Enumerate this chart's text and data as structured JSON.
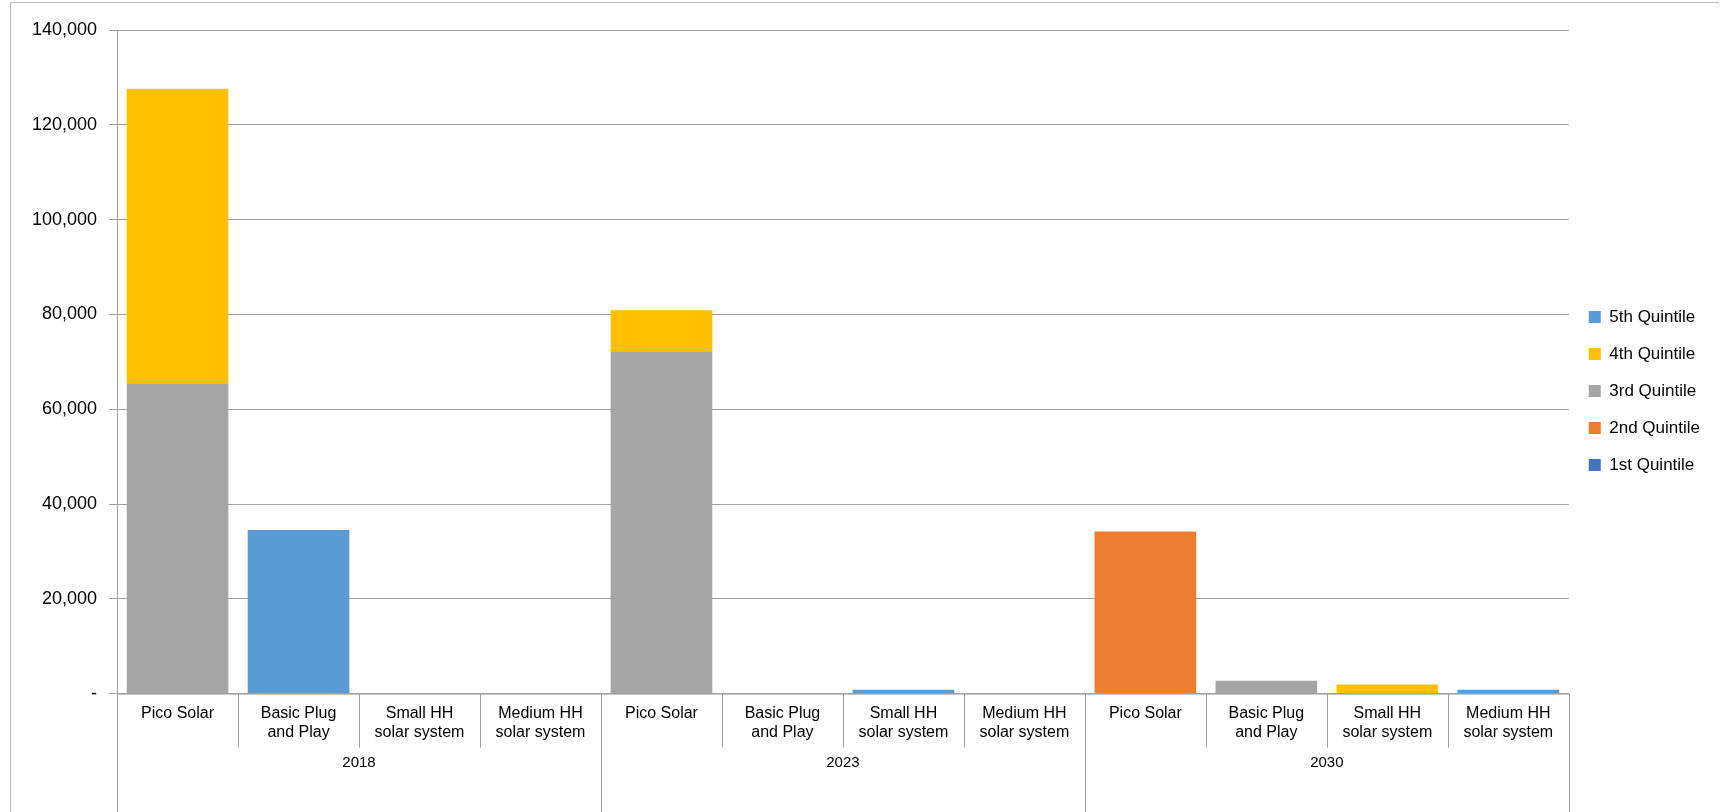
{
  "chart_data": {
    "type": "bar",
    "stacked": true,
    "categories": [
      "Pico Solar",
      "Basic Plug and Play",
      "Small HH solar system",
      "Medium HH solar system",
      "Pico Solar",
      "Basic Plug and Play",
      "Small HH solar system",
      "Medium HH solar system",
      "Pico Solar",
      "Basic Plug and Play",
      "Small HH solar system",
      "Medium HH solar system"
    ],
    "series": [
      {
        "name": "1st Quintile",
        "color": "#4472c4",
        "values": [
          null,
          null,
          null,
          null,
          null,
          null,
          null,
          null,
          null,
          null,
          null,
          null
        ]
      },
      {
        "name": "2nd Quintile",
        "color": "#ed7d31",
        "values": [
          null,
          null,
          null,
          null,
          null,
          null,
          null,
          null,
          34200,
          null,
          null,
          null
        ]
      },
      {
        "name": "3rd Quintile",
        "color": "#a5a5a5",
        "values": [
          65500,
          null,
          null,
          null,
          72200,
          null,
          null,
          null,
          null,
          2700,
          null,
          null
        ]
      },
      {
        "name": "4th Quintile",
        "color": "#ffc000",
        "values": [
          62100,
          null,
          null,
          null,
          8700,
          null,
          null,
          null,
          null,
          null,
          1900,
          null
        ]
      },
      {
        "name": "5th Quintile",
        "color": "#5b9bd5",
        "values": [
          null,
          34500,
          null,
          null,
          null,
          null,
          800,
          null,
          null,
          null,
          null,
          800
        ]
      }
    ],
    "ylim": [
      0,
      140000
    ],
    "yticks": [
      {
        "value": 0,
        "label": "-"
      },
      {
        "value": 20000,
        "label": "20,000"
      },
      {
        "value": 40000,
        "label": "40,000"
      },
      {
        "value": 60000,
        "label": "60,000"
      },
      {
        "value": 80000,
        "label": "80,000"
      },
      {
        "value": 100000,
        "label": "100,000"
      },
      {
        "value": 120000,
        "label": "120,000"
      },
      {
        "value": 140000,
        "label": "140,000"
      }
    ],
    "grid": "y",
    "legend": "right",
    "annotations": [
      "2018",
      "2023",
      "2030"
    ]
  }
}
